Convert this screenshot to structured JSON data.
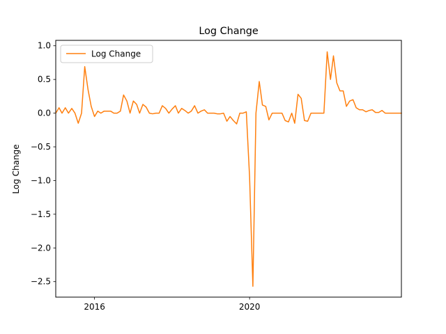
{
  "chart_data": {
    "type": "line",
    "title": "Log Change",
    "xlabel": "",
    "ylabel": "Log Change",
    "xlim": [
      "2015-01-01",
      "2023-12-01"
    ],
    "ylim": [
      -2.73,
      1.08
    ],
    "grid": false,
    "legend_position": "top-left",
    "x_ticks": [
      "2016-01-01",
      "2020-01-01"
    ],
    "x_tick_labels": [
      "2016",
      "2020"
    ],
    "y_ticks": [
      1.0,
      0.5,
      0.0,
      -0.5,
      -1.0,
      -1.5,
      -2.0,
      -2.5
    ],
    "y_tick_labels": [
      "1.0",
      "0.5",
      "0.0",
      "−0.5",
      "−1.0",
      "−1.5",
      "−2.0",
      "−2.5"
    ],
    "series": [
      {
        "name": "Log Change",
        "color": "#ff7f0e",
        "x": [
          "2015-01-01",
          "2015-02-01",
          "2015-03-01",
          "2015-04-01",
          "2015-05-01",
          "2015-06-01",
          "2015-07-01",
          "2015-08-01",
          "2015-09-01",
          "2015-10-01",
          "2015-11-01",
          "2015-12-01",
          "2016-01-01",
          "2016-02-01",
          "2016-03-01",
          "2016-04-01",
          "2016-05-01",
          "2016-06-01",
          "2016-07-01",
          "2016-08-01",
          "2016-09-01",
          "2016-10-01",
          "2016-11-01",
          "2016-12-01",
          "2017-01-01",
          "2017-02-01",
          "2017-03-01",
          "2017-04-01",
          "2017-05-01",
          "2017-06-01",
          "2017-07-01",
          "2017-08-01",
          "2017-09-01",
          "2017-10-01",
          "2017-11-01",
          "2017-12-01",
          "2018-01-01",
          "2018-02-01",
          "2018-03-01",
          "2018-04-01",
          "2018-05-01",
          "2018-06-01",
          "2018-07-01",
          "2018-08-01",
          "2018-09-01",
          "2018-10-01",
          "2018-11-01",
          "2018-12-01",
          "2019-01-01",
          "2019-02-01",
          "2019-03-01",
          "2019-04-01",
          "2019-05-01",
          "2019-06-01",
          "2019-07-01",
          "2019-08-01",
          "2019-09-01",
          "2019-10-01",
          "2019-11-01",
          "2019-12-01",
          "2020-01-01",
          "2020-02-01",
          "2020-03-01",
          "2020-04-01",
          "2020-05-01",
          "2020-06-01",
          "2020-07-01",
          "2020-08-01",
          "2020-09-01",
          "2020-10-01",
          "2020-11-01",
          "2020-12-01",
          "2021-01-01",
          "2021-02-01",
          "2021-03-01",
          "2021-04-01",
          "2021-05-01",
          "2021-06-01",
          "2021-07-01",
          "2021-08-01",
          "2021-09-01",
          "2021-10-01",
          "2021-11-01",
          "2021-12-01",
          "2022-01-01",
          "2022-02-01",
          "2022-03-01",
          "2022-04-01",
          "2022-05-01",
          "2022-06-01",
          "2022-07-01",
          "2022-08-01",
          "2022-09-01",
          "2022-10-01",
          "2022-11-01",
          "2022-12-01",
          "2023-01-01",
          "2023-02-01",
          "2023-03-01",
          "2023-04-01",
          "2023-05-01",
          "2023-06-01",
          "2023-07-01",
          "2023-08-01",
          "2023-09-01",
          "2023-10-01",
          "2023-11-01",
          "2023-12-01"
        ],
        "y": [
          0.0,
          0.08,
          0.0,
          0.08,
          0.0,
          0.07,
          0.0,
          -0.15,
          0.0,
          0.69,
          0.35,
          0.1,
          -0.05,
          0.03,
          0.0,
          0.03,
          0.03,
          0.03,
          0.0,
          0.0,
          0.03,
          0.27,
          0.18,
          0.0,
          0.18,
          0.13,
          0.0,
          0.13,
          0.09,
          0.0,
          -0.01,
          0.0,
          0.0,
          0.11,
          0.07,
          0.0,
          0.06,
          0.11,
          0.0,
          0.07,
          0.04,
          0.0,
          0.03,
          0.11,
          0.0,
          0.03,
          0.05,
          0.0,
          0.0,
          0.0,
          -0.01,
          -0.01,
          0.0,
          -0.12,
          -0.05,
          -0.11,
          -0.16,
          0.0,
          0.0,
          0.02,
          -0.95,
          -2.57,
          0.0,
          0.47,
          0.12,
          0.1,
          -0.1,
          0.0,
          0.0,
          0.0,
          0.0,
          -0.11,
          -0.13,
          0.0,
          -0.15,
          0.28,
          0.22,
          -0.11,
          -0.12,
          0.0,
          0.0,
          0.0,
          0.0,
          0.0,
          0.91,
          0.5,
          0.85,
          0.45,
          0.33,
          0.33,
          0.1,
          0.18,
          0.2,
          0.08,
          0.05,
          0.05,
          0.02,
          0.04,
          0.05,
          0.01,
          0.01,
          0.04,
          0.0,
          0.0,
          0.0,
          0.0,
          0.0,
          0.0
        ]
      }
    ]
  }
}
